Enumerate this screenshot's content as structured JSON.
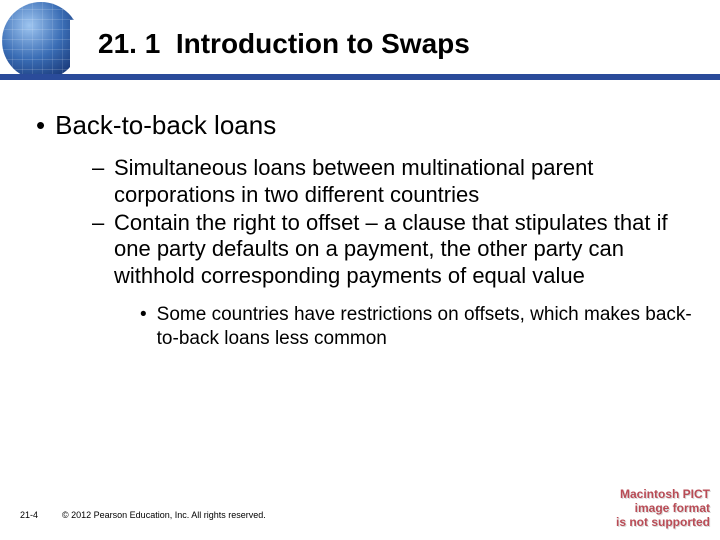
{
  "colors": {
    "brand_bar": "#2a4b9a",
    "text": "#000000",
    "background": "#ffffff",
    "qt_text": "#b94b55"
  },
  "header": {
    "section_number": "21. 1",
    "section_title": "Introduction to Swaps"
  },
  "content": {
    "level1": {
      "bullet": "•",
      "text": "Back-to-back loans"
    },
    "level2": [
      {
        "dash": "–",
        "text": "Simultaneous loans between multinational parent corporations in two different countries"
      },
      {
        "dash": "–",
        "text": "Contain the right to offset – a clause that stipulates that if one party defaults on a payment, the other party can withhold corresponding payments of equal value"
      }
    ],
    "level3": {
      "bullet": "•",
      "text": "Some countries have restrictions on offsets, which makes back-to-back loans less common"
    }
  },
  "footer": {
    "page": "21-4",
    "copyright": "© 2012 Pearson Education, Inc. All rights reserved."
  },
  "missing_image": {
    "line1": "Macintosh PICT",
    "line2": "image format",
    "line3": "is not supported"
  }
}
